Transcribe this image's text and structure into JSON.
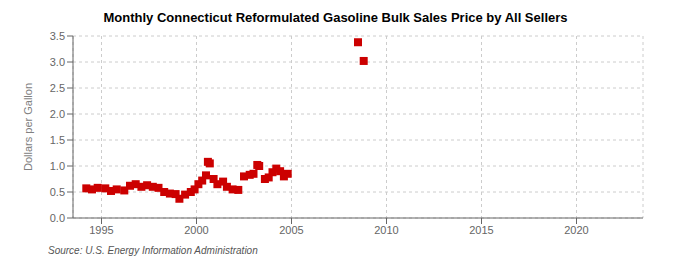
{
  "chart_data": {
    "type": "scatter",
    "title": "Monthly Connecticut Reformulated Gasoline Bulk Sales Price by All Sellers",
    "y_label": "Dollars per Gallon",
    "annotations": [
      "Source: U.S. Energy Information Administration"
    ],
    "color": "#cc0000",
    "marker": "square",
    "grid": true,
    "xlim": [
      1993.5,
      2023.5
    ],
    "ylim": [
      0.0,
      3.5
    ],
    "xticks": [
      1995,
      2000,
      2005,
      2010,
      2015,
      2020
    ],
    "yticks": [
      {
        "value": 0,
        "label": "0.0"
      },
      0.5,
      {
        "value": 1,
        "label": "1.0"
      },
      1.5,
      {
        "value": 2,
        "label": "2.0"
      },
      2.5,
      {
        "value": 3,
        "label": "3.0"
      },
      3.5
    ],
    "x": [
      1994.2,
      1994.5,
      1994.8,
      1995.2,
      1995.5,
      1995.8,
      1996.2,
      1996.5,
      1996.8,
      1997.1,
      1997.4,
      1997.7,
      1998.0,
      1998.3,
      1998.6,
      1998.9,
      1999.1,
      1999.4,
      1999.7,
      1999.9,
      2000.1,
      2000.3,
      2000.5,
      2000.6,
      2000.7,
      2000.9,
      2001.1,
      2001.4,
      2001.6,
      2001.9,
      2002.2,
      2002.5,
      2002.8,
      2003.0,
      2003.2,
      2003.3,
      2003.6,
      2003.8,
      2004.0,
      2004.2,
      2004.4,
      2004.6,
      2004.8,
      2008.5,
      2008.8
    ],
    "values": [
      0.57,
      0.55,
      0.58,
      0.57,
      0.52,
      0.55,
      0.53,
      0.62,
      0.65,
      0.6,
      0.63,
      0.6,
      0.58,
      0.5,
      0.47,
      0.46,
      0.37,
      0.45,
      0.5,
      0.55,
      0.65,
      0.72,
      0.82,
      1.08,
      1.05,
      0.75,
      0.65,
      0.7,
      0.6,
      0.55,
      0.54,
      0.8,
      0.83,
      0.85,
      1.02,
      1.0,
      0.75,
      0.78,
      0.88,
      0.95,
      0.9,
      0.8,
      0.85,
      3.38,
      3.02
    ]
  }
}
